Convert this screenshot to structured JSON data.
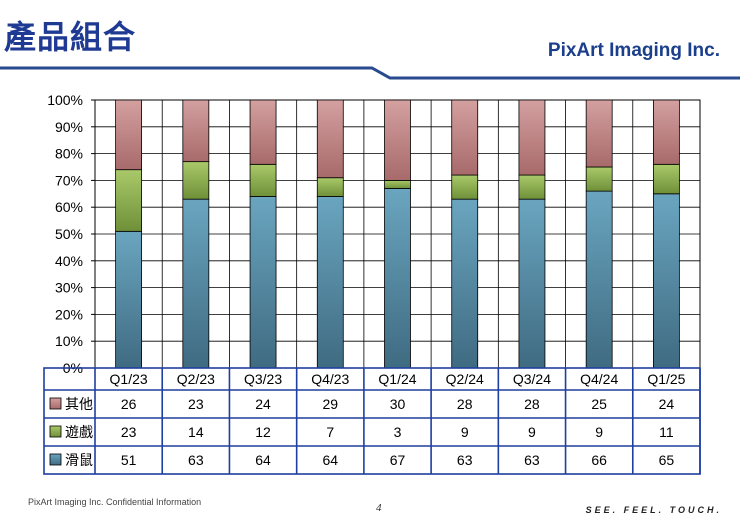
{
  "header": {
    "title": "產品組合",
    "brand": "PixArt  Imaging Inc."
  },
  "footer": {
    "confidential": "PixArt Imaging Inc. Confidential Information",
    "page_number": "4",
    "tagline": "SEE. FEEL. TOUCH."
  },
  "colors": {
    "brand_blue": "#1f3a93",
    "rule": "#2a4a8f",
    "table_border": "#1f3fa0",
    "mouse": "#5f95ad",
    "gaming": "#9bbb59",
    "other": "#c0504d"
  },
  "chart_data": {
    "type": "bar",
    "stacked": true,
    "title": "",
    "xlabel": "",
    "ylabel": "",
    "ylim": [
      0,
      100
    ],
    "yticks": [
      "0%",
      "10%",
      "20%",
      "30%",
      "40%",
      "50%",
      "60%",
      "70%",
      "80%",
      "90%",
      "100%"
    ],
    "categories": [
      "Q1/23",
      "Q2/23",
      "Q3/23",
      "Q4/23",
      "Q1/24",
      "Q2/24",
      "Q3/24",
      "Q4/24",
      "Q1/25"
    ],
    "series": [
      {
        "name": "其他",
        "key": "other",
        "color": "#c0504d",
        "values": [
          26,
          23,
          24,
          29,
          30,
          28,
          28,
          25,
          24
        ]
      },
      {
        "name": "遊戲",
        "key": "gaming",
        "color": "#9bbb59",
        "values": [
          23,
          14,
          12,
          7,
          3,
          9,
          9,
          9,
          11
        ]
      },
      {
        "name": "滑鼠",
        "key": "mouse",
        "color": "#4f81bd",
        "values": [
          51,
          63,
          64,
          64,
          67,
          63,
          63,
          66,
          65
        ]
      }
    ],
    "stack_order_bottom_to_top": [
      "mouse",
      "gaming",
      "other"
    ],
    "grid": true,
    "legend": "table-below"
  }
}
